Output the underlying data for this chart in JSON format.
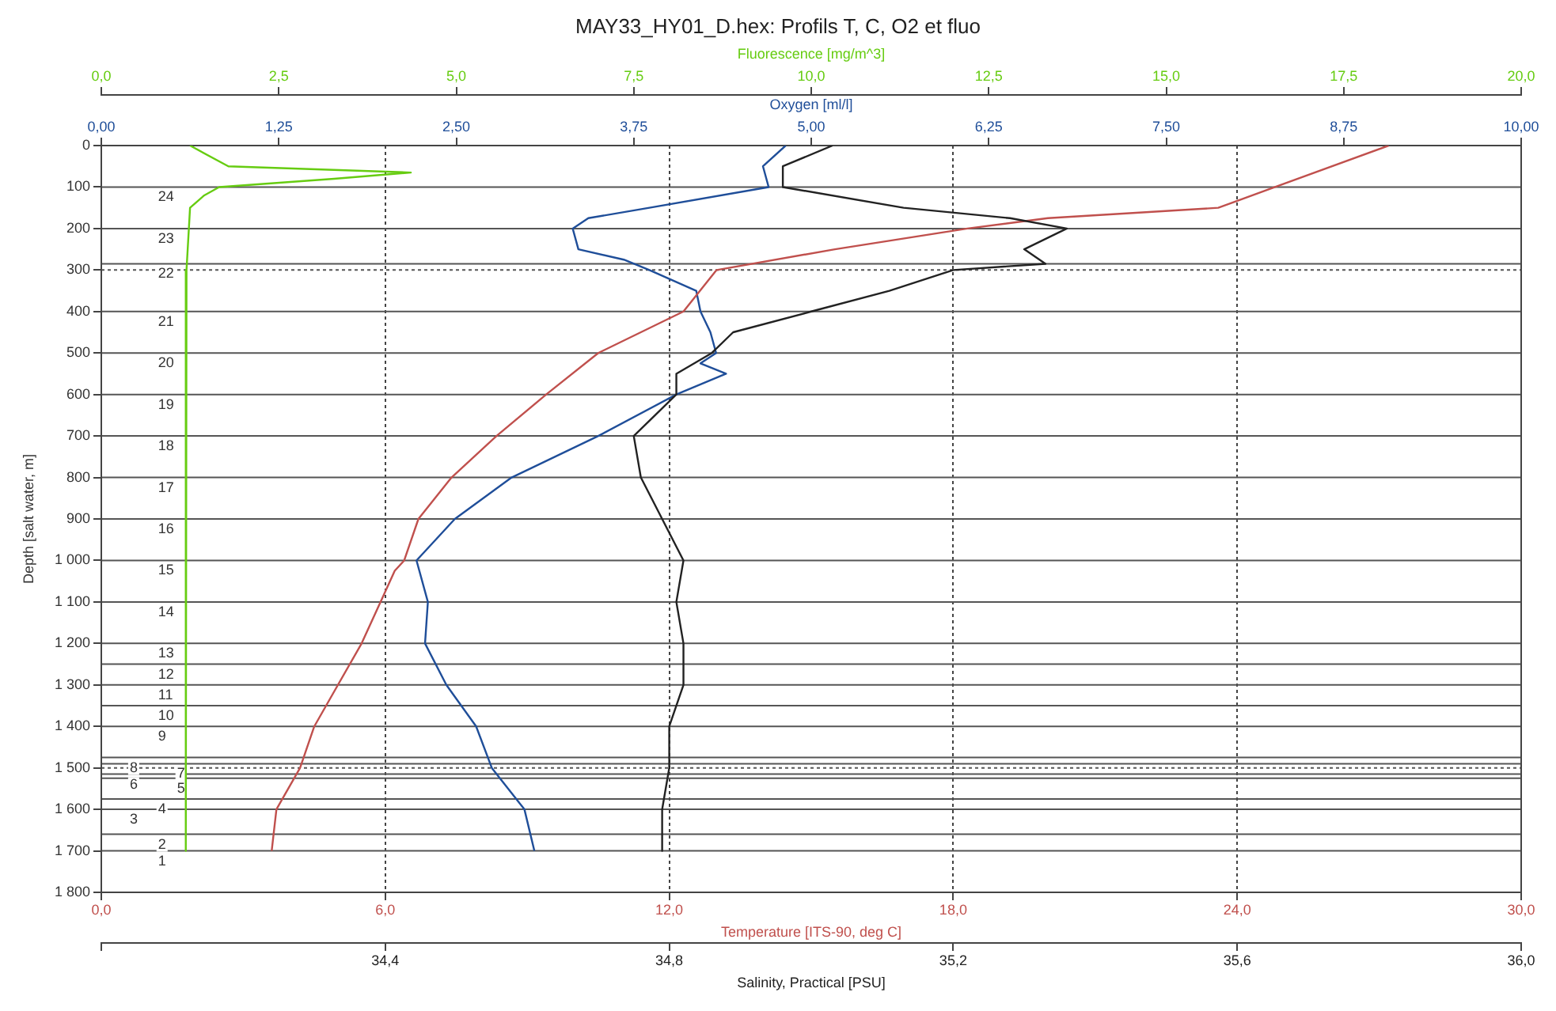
{
  "chart_data": [
    {
      "type": "line",
      "title": "MAY33_HY01_D.hex: Profils T, C, O2 et fluo",
      "xlabel": "Temperature [ITS-90, deg C]",
      "x2label": "Oxygen [ml/l]",
      "ylabel": "Depth [salt water, m]",
      "xlim": [
        0,
        30
      ],
      "xticks": [
        {
          "value": 0,
          "label": "0,0"
        },
        {
          "value": 6,
          "label": "6,0"
        },
        {
          "value": 12,
          "label": "12,0"
        },
        {
          "value": 18,
          "label": "18,0"
        },
        {
          "value": 24,
          "label": "24,0"
        },
        {
          "value": 30,
          "label": "30,0"
        }
      ],
      "x2lim": [
        0,
        10
      ],
      "x2ticks": [
        {
          "value": 0,
          "label": "0,00"
        },
        {
          "value": 1.25,
          "label": "1,25"
        },
        {
          "value": 2.5,
          "label": "2,50"
        },
        {
          "value": 3.75,
          "label": "3,75"
        },
        {
          "value": 5,
          "label": "5,00"
        },
        {
          "value": 6.25,
          "label": "6,25"
        },
        {
          "value": 7.5,
          "label": "7,50"
        },
        {
          "value": 8.75,
          "label": "8,75"
        },
        {
          "value": 10,
          "label": "10,00"
        }
      ],
      "ylim": [
        1800,
        0
      ],
      "yticks": [
        0,
        100,
        200,
        300,
        400,
        500,
        600,
        700,
        800,
        900,
        {
          "value": 1000,
          "label": "1 000"
        },
        {
          "value": 1100,
          "label": "1 100"
        },
        {
          "value": 1200,
          "label": "1 200"
        },
        {
          "value": 1300,
          "label": "1 300"
        },
        {
          "value": 1400,
          "label": "1 400"
        },
        {
          "value": 1500,
          "label": "1 500"
        },
        {
          "value": 1600,
          "label": "1 600"
        },
        {
          "value": 1700,
          "label": "1 700"
        },
        {
          "value": 1800,
          "label": "1 800"
        }
      ],
      "grid": "x",
      "marker": "none",
      "legend": false,
      "series": [
        {
          "color": "#c0504d",
          "x": [
            27.2,
            24.8,
            23.6,
            20.0,
            18.3,
            15.5,
            13.0,
            12.3,
            10.5,
            9.4,
            8.35,
            7.4,
            6.7,
            6.4,
            6.2,
            5.9,
            5.5,
            5.0,
            4.5,
            4.2,
            3.7,
            3.6
          ],
          "values": [
            0,
            100,
            150,
            175,
            200,
            250,
            300,
            400,
            500,
            600,
            700,
            800,
            900,
            1000,
            1025,
            1100,
            1200,
            1300,
            1400,
            1500,
            1600,
            1700
          ]
        },
        {
          "color": "#1f4e99",
          "axis": "x2",
          "x": [
            4.82,
            4.66,
            4.7,
            3.86,
            3.43,
            3.32,
            3.36,
            3.68,
            3.86,
            4.19,
            4.22,
            4.29,
            4.33,
            4.22,
            4.4,
            4.05,
            3.5,
            2.89,
            2.49,
            2.22,
            2.3,
            2.28,
            2.43,
            2.64,
            2.75,
            2.98,
            3.05
          ],
          "values": [
            0,
            50,
            100,
            150,
            175,
            200,
            250,
            275,
            300,
            350,
            400,
            450,
            500,
            525,
            550,
            600,
            700,
            800,
            900,
            1000,
            1100,
            1200,
            1300,
            1400,
            1500,
            1600,
            1700
          ]
        }
      ],
      "ref_lines": [
        {
          "axis": "y",
          "value": 100
        },
        {
          "axis": "y",
          "value": 200
        },
        {
          "axis": "y",
          "value": 285
        },
        {
          "axis": "y",
          "value": 300,
          "line_style": "dotted"
        },
        {
          "axis": "y",
          "value": 400
        },
        {
          "axis": "y",
          "value": 500
        },
        {
          "axis": "y",
          "value": 600
        },
        {
          "axis": "y",
          "value": 700
        },
        {
          "axis": "y",
          "value": 800
        },
        {
          "axis": "y",
          "value": 900
        },
        {
          "axis": "y",
          "value": 1000
        },
        {
          "axis": "y",
          "value": 1100
        },
        {
          "axis": "y",
          "value": 1200
        },
        {
          "axis": "y",
          "value": 1250
        },
        {
          "axis": "y",
          "value": 1300
        },
        {
          "axis": "y",
          "value": 1350
        },
        {
          "axis": "y",
          "value": 1400
        },
        {
          "axis": "y",
          "value": 1475
        },
        {
          "axis": "y",
          "value": 1490
        },
        {
          "axis": "y",
          "value": 1500,
          "line_style": "dotted"
        },
        {
          "axis": "y",
          "value": 1515
        },
        {
          "axis": "y",
          "value": 1525
        },
        {
          "axis": "y",
          "value": 1575
        },
        {
          "axis": "y",
          "value": 1600
        },
        {
          "axis": "y",
          "value": 1660
        },
        {
          "axis": "y",
          "value": 1700
        }
      ],
      "annotations": [
        {
          "text": "24",
          "x": 1.2,
          "y": 100
        },
        {
          "text": "23",
          "x": 1.2,
          "y": 200
        },
        {
          "text": "22",
          "x": 1.2,
          "y": 285
        },
        {
          "text": "21",
          "x": 1.2,
          "y": 400
        },
        {
          "text": "20",
          "x": 1.2,
          "y": 500
        },
        {
          "text": "19",
          "x": 1.2,
          "y": 600
        },
        {
          "text": "18",
          "x": 1.2,
          "y": 700
        },
        {
          "text": "17",
          "x": 1.2,
          "y": 800
        },
        {
          "text": "16",
          "x": 1.2,
          "y": 900
        },
        {
          "text": "15",
          "x": 1.2,
          "y": 1000
        },
        {
          "text": "14",
          "x": 1.2,
          "y": 1100
        },
        {
          "text": "13",
          "x": 1.2,
          "y": 1200
        },
        {
          "text": "12",
          "x": 1.2,
          "y": 1250
        },
        {
          "text": "11",
          "x": 1.2,
          "y": 1300
        },
        {
          "text": "10",
          "x": 1.2,
          "y": 1350
        },
        {
          "text": "9",
          "x": 1.2,
          "y": 1400
        },
        {
          "text": "8",
          "x": 0.6,
          "y": 1475
        },
        {
          "text": "7",
          "x": 1.6,
          "y": 1490
        },
        {
          "text": "6",
          "x": 0.6,
          "y": 1515
        },
        {
          "text": "5",
          "x": 1.6,
          "y": 1525
        },
        {
          "text": "4",
          "x": 1.2,
          "y": 1575
        },
        {
          "text": "3",
          "x": 0.6,
          "y": 1600
        },
        {
          "text": "2",
          "x": 1.2,
          "y": 1660
        },
        {
          "text": "1",
          "x": 1.2,
          "y": 1700
        }
      ]
    },
    {
      "type": "line",
      "xlabel": "Salinity, Practical [PSU]",
      "x2label": "Fluorescence [mg/m^3]",
      "xlim": [
        34.0,
        36.0
      ],
      "xticks": [
        {
          "value": 34.0,
          "label": null
        },
        {
          "value": 34.4,
          "label": "34,4"
        },
        {
          "value": 34.8,
          "label": "34,8"
        },
        {
          "value": 35.2,
          "label": "35,2"
        },
        {
          "value": 35.6,
          "label": "35,6"
        },
        {
          "value": 36.0,
          "label": "36,0"
        }
      ],
      "x2lim": [
        0,
        20
      ],
      "x2ticks": [
        {
          "value": 0,
          "label": "0,0"
        },
        {
          "value": 2.5,
          "label": "2,5"
        },
        {
          "value": 5,
          "label": "5,0"
        },
        {
          "value": 7.5,
          "label": "7,5"
        },
        {
          "value": 10,
          "label": "10,0"
        },
        {
          "value": 12.5,
          "label": "12,5"
        },
        {
          "value": 15,
          "label": "15,0"
        },
        {
          "value": 17.5,
          "label": "17,5"
        },
        {
          "value": 20,
          "label": "20,0"
        }
      ],
      "ylim": [
        1800,
        0
      ],
      "yticks": [
        {
          "value": 0,
          "label": null
        },
        {
          "value": 100,
          "label": null
        },
        {
          "value": 200,
          "label": null
        },
        {
          "value": 300,
          "label": null
        },
        {
          "value": 400,
          "label": null
        },
        {
          "value": 500,
          "label": null
        },
        {
          "value": 600,
          "label": null
        },
        {
          "value": 700,
          "label": null
        },
        {
          "value": 800,
          "label": null
        },
        {
          "value": 900,
          "label": null
        },
        {
          "value": 1000,
          "label": null
        },
        {
          "value": 1100,
          "label": null
        },
        {
          "value": 1200,
          "label": null
        },
        {
          "value": 1300,
          "label": null
        },
        {
          "value": 1400,
          "label": null
        },
        {
          "value": 1500,
          "label": null
        },
        {
          "value": 1600,
          "label": null
        },
        {
          "value": 1700,
          "label": null
        },
        {
          "value": 1800,
          "label": null
        }
      ],
      "tick_labels": "x",
      "marker": "none",
      "legend": false,
      "series": [
        {
          "color": "#222222",
          "x": [
            35.03,
            34.96,
            34.96,
            35.13,
            35.28,
            35.36,
            35.3,
            35.33,
            35.2,
            35.11,
            35.0,
            34.89,
            34.86,
            34.81,
            34.81,
            34.75,
            34.76,
            34.79,
            34.82,
            34.81,
            34.82,
            34.82,
            34.8,
            34.8,
            34.79,
            34.79
          ],
          "values": [
            0,
            50,
            100,
            150,
            175,
            200,
            250,
            285,
            300,
            350,
            400,
            450,
            500,
            550,
            600,
            700,
            800,
            900,
            1000,
            1100,
            1200,
            1300,
            1400,
            1500,
            1600,
            1700
          ]
        },
        {
          "color": "#66cc11",
          "axis": "x2",
          "x": [
            1.25,
            1.79,
            4.36,
            3.28,
            1.66,
            1.45,
            1.25,
            1.2,
            1.19
          ],
          "values": [
            0,
            50,
            65,
            80,
            100,
            120,
            150,
            300,
            1700
          ]
        }
      ]
    }
  ]
}
